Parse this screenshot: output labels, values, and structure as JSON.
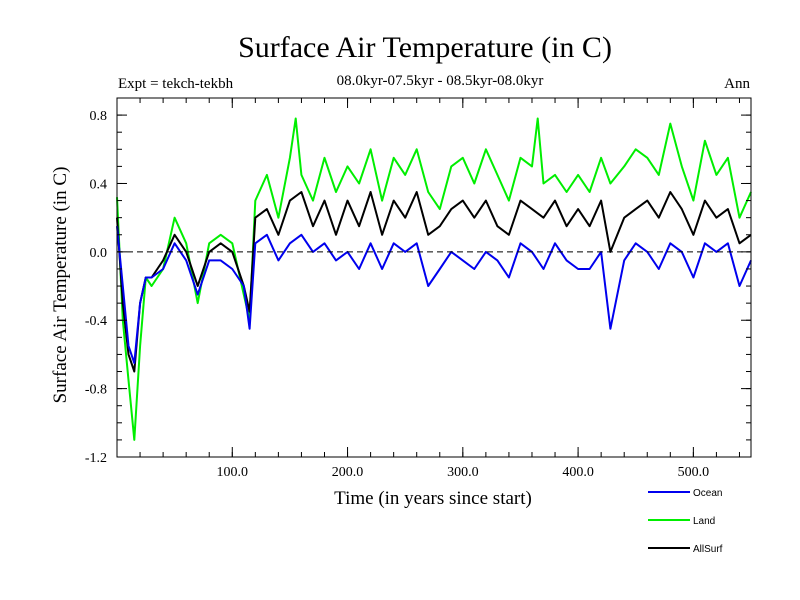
{
  "chart_data": {
    "type": "line",
    "title": "Surface Air Temperature (in C)",
    "subtitle": "08.0kyr-07.5kyr - 08.5kyr-08.0kyr",
    "experiment": "Expt = tekch-tekbh",
    "season": "Ann",
    "xlabel": "Time (in years since start)",
    "ylabel": "Surface Air Temperature (in C)",
    "xlim": [
      0,
      550
    ],
    "ylim": [
      -1.2,
      0.9
    ],
    "x_ticks": [
      {
        "value": 100,
        "label": "100.0"
      },
      {
        "value": 200,
        "label": "200.0"
      },
      {
        "value": 300,
        "label": "300.0"
      },
      {
        "value": 400,
        "label": "400.0"
      },
      {
        "value": 500,
        "label": "500.0"
      }
    ],
    "y_ticks": [
      {
        "value": 0.8,
        "label": "0.8"
      },
      {
        "value": 0.4,
        "label": "0.4"
      },
      {
        "value": 0.0,
        "label": "0.0"
      },
      {
        "value": -0.4,
        "label": "-0.4"
      },
      {
        "value": -0.8,
        "label": "-0.8"
      },
      {
        "value": -1.2,
        "label": "-1.2"
      }
    ],
    "x_minor_step": 20,
    "y_minor_step": 0.1,
    "zero_line": true,
    "legend_position": "bottom-right",
    "series": [
      {
        "name": "Land",
        "color": "#00ee00",
        "x": [
          0,
          5,
          10,
          15,
          20,
          25,
          30,
          40,
          50,
          60,
          70,
          80,
          90,
          100,
          110,
          115,
          120,
          130,
          140,
          150,
          155,
          160,
          170,
          180,
          190,
          200,
          210,
          220,
          230,
          240,
          250,
          260,
          270,
          280,
          290,
          300,
          310,
          320,
          330,
          340,
          350,
          360,
          365,
          370,
          380,
          390,
          400,
          410,
          420,
          428,
          440,
          450,
          460,
          470,
          480,
          490,
          500,
          510,
          520,
          530,
          540,
          550
        ],
        "values": [
          0.32,
          -0.4,
          -0.75,
          -1.1,
          -0.55,
          -0.15,
          -0.2,
          -0.1,
          0.2,
          0.05,
          -0.3,
          0.05,
          0.1,
          0.05,
          -0.25,
          -0.4,
          0.3,
          0.45,
          0.2,
          0.55,
          0.78,
          0.45,
          0.3,
          0.55,
          0.35,
          0.5,
          0.4,
          0.6,
          0.3,
          0.55,
          0.45,
          0.6,
          0.35,
          0.25,
          0.5,
          0.55,
          0.4,
          0.6,
          0.45,
          0.3,
          0.55,
          0.5,
          0.78,
          0.4,
          0.45,
          0.35,
          0.45,
          0.35,
          0.55,
          0.4,
          0.5,
          0.6,
          0.55,
          0.45,
          0.75,
          0.5,
          0.3,
          0.65,
          0.45,
          0.55,
          0.2,
          0.35
        ]
      },
      {
        "name": "AllSurf",
        "color": "#000000",
        "x": [
          0,
          5,
          10,
          15,
          20,
          25,
          30,
          40,
          50,
          60,
          70,
          80,
          90,
          100,
          110,
          115,
          120,
          130,
          140,
          150,
          160,
          170,
          180,
          190,
          200,
          210,
          220,
          230,
          240,
          250,
          260,
          270,
          280,
          290,
          300,
          310,
          320,
          330,
          340,
          350,
          360,
          370,
          380,
          390,
          400,
          410,
          420,
          428,
          440,
          450,
          460,
          470,
          480,
          490,
          500,
          510,
          520,
          530,
          540,
          550
        ],
        "values": [
          0.2,
          -0.3,
          -0.6,
          -0.7,
          -0.3,
          -0.15,
          -0.15,
          -0.05,
          0.1,
          0.0,
          -0.2,
          0.0,
          0.05,
          0.0,
          -0.2,
          -0.35,
          0.2,
          0.25,
          0.1,
          0.3,
          0.35,
          0.15,
          0.3,
          0.1,
          0.3,
          0.15,
          0.35,
          0.1,
          0.3,
          0.2,
          0.35,
          0.1,
          0.15,
          0.25,
          0.3,
          0.2,
          0.3,
          0.15,
          0.1,
          0.3,
          0.25,
          0.2,
          0.3,
          0.15,
          0.25,
          0.15,
          0.3,
          0.0,
          0.2,
          0.25,
          0.3,
          0.2,
          0.35,
          0.25,
          0.1,
          0.3,
          0.2,
          0.25,
          0.05,
          0.1
        ]
      },
      {
        "name": "Ocean",
        "color": "#0000ee",
        "x": [
          0,
          5,
          10,
          15,
          20,
          25,
          30,
          40,
          50,
          60,
          70,
          80,
          90,
          100,
          110,
          115,
          120,
          130,
          140,
          150,
          160,
          170,
          180,
          190,
          200,
          210,
          220,
          230,
          240,
          250,
          260,
          270,
          280,
          290,
          300,
          310,
          320,
          330,
          340,
          350,
          360,
          370,
          380,
          390,
          400,
          410,
          420,
          428,
          440,
          450,
          460,
          470,
          480,
          490,
          500,
          510,
          520,
          530,
          540,
          550
        ],
        "values": [
          0.15,
          -0.2,
          -0.55,
          -0.65,
          -0.3,
          -0.15,
          -0.15,
          -0.1,
          0.05,
          -0.05,
          -0.25,
          -0.05,
          -0.05,
          -0.1,
          -0.2,
          -0.45,
          0.05,
          0.1,
          -0.05,
          0.05,
          0.1,
          0.0,
          0.05,
          -0.05,
          0.0,
          -0.1,
          0.05,
          -0.1,
          0.05,
          0.0,
          0.05,
          -0.2,
          -0.1,
          0.0,
          -0.05,
          -0.1,
          0.0,
          -0.05,
          -0.15,
          0.05,
          0.0,
          -0.1,
          0.05,
          -0.05,
          -0.1,
          -0.1,
          0.0,
          -0.45,
          -0.05,
          0.05,
          0.0,
          -0.1,
          0.05,
          0.0,
          -0.15,
          0.05,
          0.0,
          0.05,
          -0.2,
          -0.05
        ]
      }
    ],
    "legend": [
      {
        "name": "Ocean",
        "color": "#0000ee"
      },
      {
        "name": "Land",
        "color": "#00ee00"
      },
      {
        "name": "AllSurf",
        "color": "#000000"
      }
    ]
  }
}
